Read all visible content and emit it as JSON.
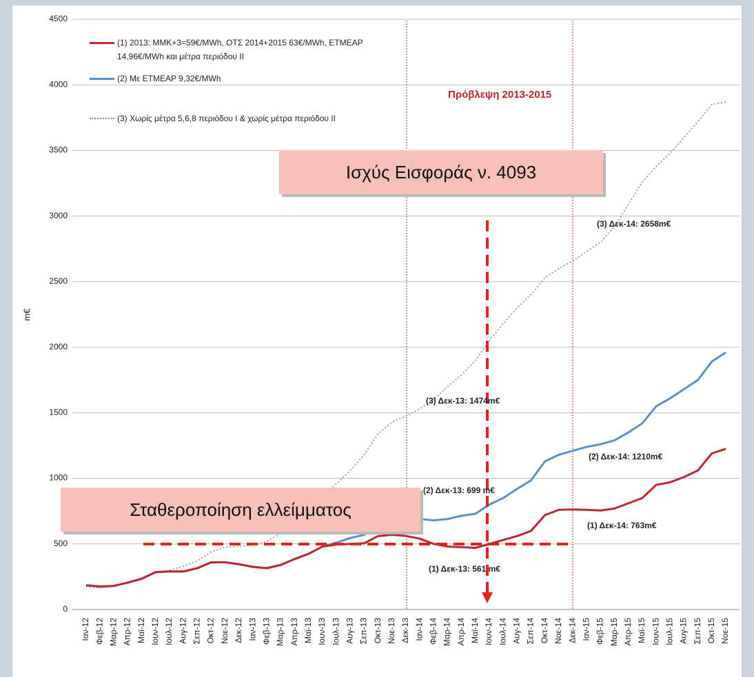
{
  "chart_data": {
    "type": "line",
    "y_label": "m€",
    "categories": [
      "Ιαν-12",
      "Φεβ-12",
      "Μαρ-12",
      "Απρ-12",
      "Μαϊ-12",
      "Ιουν-12",
      "Ιουλ-12",
      "Αυγ-12",
      "Σεπ-12",
      "Οκτ-12",
      "Νοε-12",
      "Δεκ-12",
      "Ιαν-13",
      "Φεβ-13",
      "Μαρ-13",
      "Απρ-13",
      "Μαϊ-13",
      "Ιουν-13",
      "Ιουλ-13",
      "Αυγ-13",
      "Σεπ-13",
      "Οκτ-13",
      "Νοε-13",
      "Δεκ-13",
      "Ιαν-14",
      "Φεβ-14",
      "Μαρ-14",
      "Απρ-14",
      "Μαϊ-14",
      "Ιουν-14",
      "Ιουλ-14",
      "Αυγ-14",
      "Σεπ-14",
      "Οκτ-14",
      "Νοε-14",
      "Δεκ-14",
      "Ιαν-15",
      "Φεβ-15",
      "Μαρ-15",
      "Απρ-15",
      "Μαϊ-15",
      "Ιουν-15",
      "Ιουλ-15",
      "Αυγ-15",
      "Σεπ-15",
      "Οκτ-15",
      "Νοε-15"
    ],
    "series": [
      {
        "name": "(1) 2013: ΜΜΚ+3=59€/MWh, ΟΤΣ 2014+2015 63€/MWh, ΕΤΜΕΑΡ 14,96€/MWh και μέτρα περιόδου ΙΙ",
        "color": "#c0272d",
        "dash": "solid",
        "values": [
          185,
          175,
          180,
          205,
          235,
          285,
          290,
          290,
          315,
          360,
          360,
          345,
          325,
          315,
          340,
          385,
          425,
          480,
          495,
          500,
          505,
          560,
          570,
          561,
          540,
          500,
          480,
          475,
          470,
          500,
          530,
          560,
          600,
          720,
          760,
          763,
          760,
          755,
          770,
          810,
          850,
          950,
          970,
          1010,
          1060,
          1190,
          1225
        ]
      },
      {
        "name": "(2) Με ΕΤΜΕΑΡ 9,32€/MWh",
        "color": "#5b8fc9",
        "dash": "solid",
        "values": [
          185,
          175,
          180,
          205,
          235,
          285,
          290,
          290,
          315,
          360,
          360,
          345,
          325,
          315,
          340,
          385,
          425,
          480,
          510,
          545,
          570,
          650,
          690,
          699,
          690,
          680,
          690,
          715,
          730,
          800,
          850,
          920,
          985,
          1130,
          1180,
          1210,
          1240,
          1260,
          1290,
          1350,
          1420,
          1550,
          1610,
          1680,
          1750,
          1890,
          1960
        ]
      },
      {
        "name": "(3) Χωρίς μέτρα 5,6,8 περιόδου Ι & χωρίς μέτρα περιόδου ΙΙ",
        "color": "#8a7fc8",
        "dash": "dotted",
        "values": [
          175,
          165,
          175,
          205,
          230,
          285,
          300,
          330,
          370,
          440,
          475,
          480,
          490,
          520,
          580,
          650,
          720,
          860,
          960,
          1060,
          1180,
          1340,
          1430,
          1474,
          1530,
          1600,
          1700,
          1790,
          1900,
          2050,
          2180,
          2300,
          2400,
          2530,
          2600,
          2658,
          2730,
          2800,
          2920,
          3090,
          3260,
          3380,
          3480,
          3600,
          3720,
          3850,
          3870
        ]
      }
    ],
    "ylim": [
      0,
      4500
    ],
    "yticks": [
      0,
      500,
      1000,
      1500,
      2000,
      2500,
      3000,
      3500,
      4000,
      4500
    ],
    "grid": true,
    "annotations": [
      "Πρόβλεψη 2013-2015",
      "Ισχύς Εισφοράς ν. 4093",
      "Σταθεροποίηση ελλείμματος",
      "(3) Δεκ-14: 2658m€",
      "(3) Δεκ-13: 1474m€",
      "(2) Δεκ-14: 1210m€",
      "(2) Δεκ-13: 699 m€",
      "(1) Δεκ-14: 763m€",
      "(1) Δεκ-13: 561 m€"
    ]
  }
}
